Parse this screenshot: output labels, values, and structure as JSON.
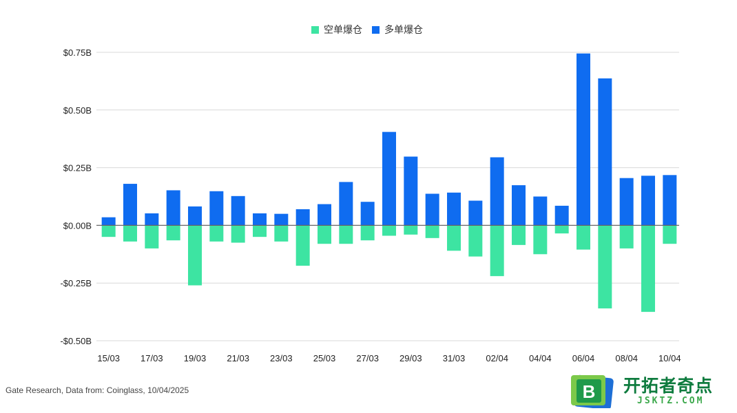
{
  "colors": {
    "short_liq": "#3de4a2",
    "long_liq": "#0f6cf0",
    "grid": "#d9d9d9",
    "zero_line": "#666666"
  },
  "legend": {
    "short_label": "空单爆仓",
    "long_label": "多单爆仓"
  },
  "source_note": "Gate Research, Data from: Coinglass, 10/04/2025",
  "logo": {
    "badge_letter": "B",
    "title": "开拓者奇点",
    "domain": "JSKTZ.COM"
  },
  "chart_data": {
    "type": "bar",
    "categories": [
      "15/03",
      "16/03",
      "17/03",
      "18/03",
      "19/03",
      "20/03",
      "21/03",
      "22/03",
      "23/03",
      "24/03",
      "25/03",
      "26/03",
      "27/03",
      "28/03",
      "29/03",
      "30/03",
      "31/03",
      "01/04",
      "02/04",
      "03/04",
      "04/04",
      "05/04",
      "06/04",
      "07/04",
      "08/04",
      "09/04",
      "10/04"
    ],
    "x_tick_labels": [
      "15/03",
      "",
      "17/03",
      "",
      "19/03",
      "",
      "21/03",
      "",
      "23/03",
      "",
      "25/03",
      "",
      "27/03",
      "",
      "29/03",
      "",
      "31/03",
      "",
      "02/04",
      "",
      "04/04",
      "",
      "06/04",
      "",
      "08/04",
      "",
      "10/04"
    ],
    "series": [
      {
        "name": "空单爆仓",
        "values": [
          -0.05,
          -0.07,
          -0.1,
          -0.065,
          -0.26,
          -0.07,
          -0.075,
          -0.05,
          -0.07,
          -0.175,
          -0.08,
          -0.08,
          -0.065,
          -0.045,
          -0.04,
          -0.055,
          -0.11,
          -0.135,
          -0.22,
          -0.085,
          -0.125,
          -0.035,
          -0.105,
          -0.36,
          -0.1,
          -0.375,
          -0.08
        ]
      },
      {
        "name": "多单爆仓",
        "values": [
          0.035,
          0.18,
          0.052,
          0.152,
          0.082,
          0.148,
          0.127,
          0.052,
          0.05,
          0.07,
          0.092,
          0.188,
          0.102,
          0.405,
          0.298,
          0.137,
          0.142,
          0.107,
          0.295,
          0.174,
          0.125,
          0.085,
          0.745,
          0.637,
          0.205,
          0.215,
          0.218
        ]
      }
    ],
    "y_ticks": [
      0.75,
      0.5,
      0.25,
      0.0,
      -0.25,
      -0.5
    ],
    "y_tick_labels": [
      "$0.75B",
      "$0.50B",
      "$0.25B",
      "$0.00B",
      "-$0.25B",
      "-$0.50B"
    ],
    "ylim": [
      -0.5,
      0.75
    ],
    "grid": true,
    "legend_position": "top-center"
  }
}
